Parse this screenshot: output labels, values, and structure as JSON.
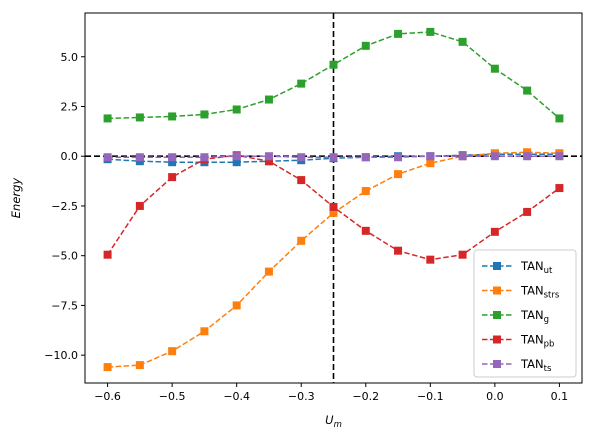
{
  "chart_data": {
    "type": "line",
    "xlabel": "U_m",
    "ylabel": "Energy",
    "xlim": [
      -0.635,
      0.135
    ],
    "ylim": [
      -11.4,
      7.2
    ],
    "xticks": [
      -0.6,
      -0.5,
      -0.4,
      -0.3,
      -0.2,
      -0.1,
      0.0,
      0.1
    ],
    "xtick_labels": [
      "−0.6",
      "−0.5",
      "−0.4",
      "−0.3",
      "−0.2",
      "−0.1",
      "0.0",
      "0.1"
    ],
    "yticks": [
      5.0,
      2.5,
      0.0,
      -2.5,
      -5.0,
      -7.5,
      -10.0
    ],
    "ytick_labels": [
      "5.0",
      "2.5",
      "0.0",
      "−2.5",
      "−5.0",
      "−7.5",
      "−10.0"
    ],
    "reference_lines": {
      "vertical_x": -0.25,
      "horizontal_y": 0.0
    },
    "legend_position": "lower-right",
    "marker": "square",
    "line_style": "dashed",
    "x": [
      -0.6,
      -0.55,
      -0.5,
      -0.45,
      -0.4,
      -0.35,
      -0.3,
      -0.25,
      -0.2,
      -0.15,
      -0.1,
      -0.05,
      0.0,
      0.05,
      0.1
    ],
    "series": [
      {
        "name": "TAN",
        "sub": "ut",
        "color": "#1f77b4",
        "values": [
          -0.15,
          -0.25,
          -0.3,
          -0.3,
          -0.3,
          -0.25,
          -0.2,
          -0.1,
          -0.05,
          0.0,
          0.0,
          0.05,
          0.1,
          0.1,
          0.1
        ]
      },
      {
        "name": "TAN",
        "sub": "strs",
        "color": "#ff7f0e",
        "values": [
          -10.6,
          -10.5,
          -9.8,
          -8.8,
          -7.5,
          -5.8,
          -4.25,
          -2.85,
          -1.75,
          -0.9,
          -0.35,
          0.0,
          0.15,
          0.2,
          0.15
        ]
      },
      {
        "name": "TAN",
        "sub": "g",
        "color": "#2ca02c",
        "values": [
          1.9,
          1.95,
          2.0,
          2.1,
          2.35,
          2.85,
          3.65,
          4.6,
          5.55,
          6.15,
          6.25,
          5.75,
          4.4,
          3.3,
          1.9
        ]
      },
      {
        "name": "TAN",
        "sub": "pb",
        "color": "#d62728",
        "values": [
          -4.95,
          -2.5,
          -1.05,
          -0.15,
          0.05,
          -0.25,
          -1.2,
          -2.55,
          -3.75,
          -4.75,
          -5.2,
          -4.95,
          -3.8,
          -2.8,
          -1.6
        ]
      },
      {
        "name": "TAN",
        "sub": "ts",
        "color": "#9467bd",
        "values": [
          -0.05,
          -0.05,
          -0.05,
          -0.05,
          0.0,
          0.0,
          -0.05,
          -0.05,
          -0.05,
          -0.05,
          0.0,
          0.0,
          0.0,
          0.0,
          0.0
        ]
      }
    ]
  }
}
